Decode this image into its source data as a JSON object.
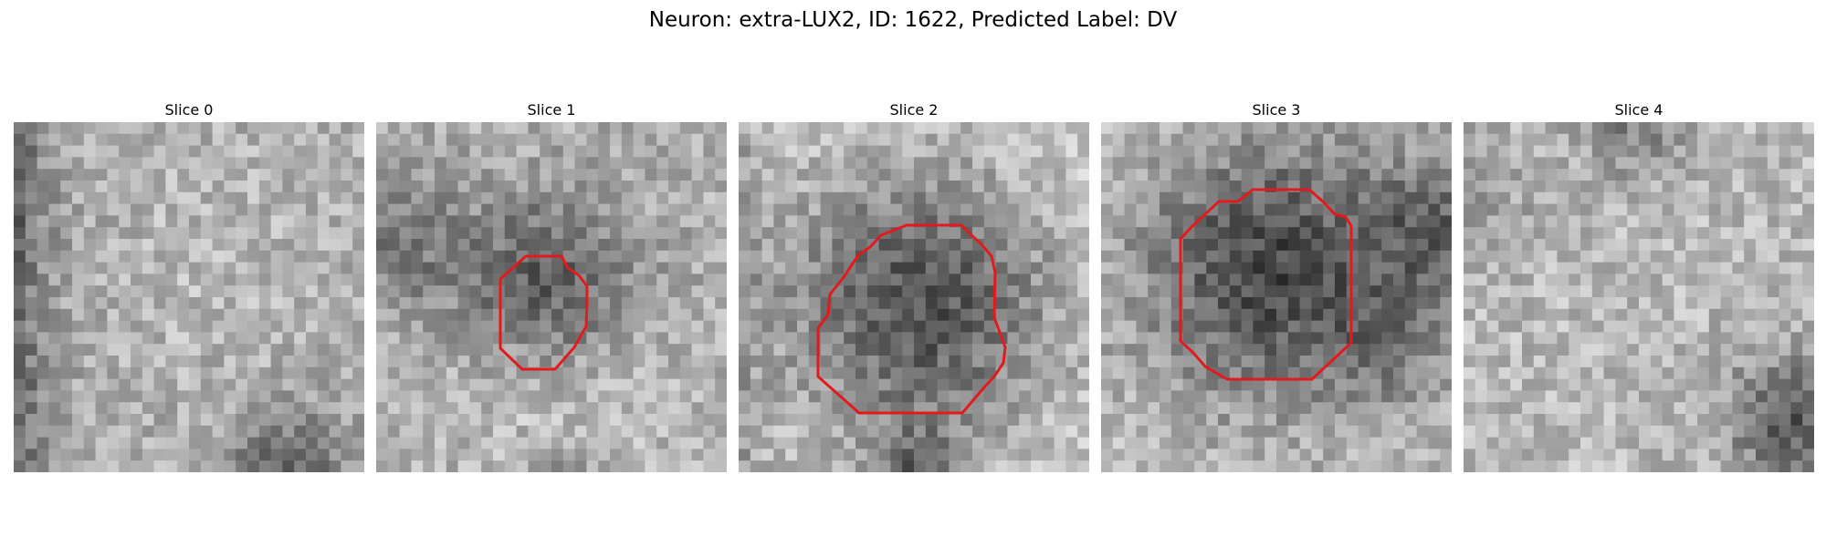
{
  "figure": {
    "title": "Neuron: extra-LUX2, ID: 1622, Predicted Label: DV"
  },
  "colors": {
    "contour": "#e31a1c",
    "background": "#ffffff",
    "colormap": "gray"
  },
  "panels": [
    {
      "title": "Slice 0",
      "has_contour": false
    },
    {
      "title": "Slice 1",
      "has_contour": true
    },
    {
      "title": "Slice 2",
      "has_contour": true
    },
    {
      "title": "Slice 3",
      "has_contour": true
    },
    {
      "title": "Slice 4",
      "has_contour": false
    }
  ]
}
